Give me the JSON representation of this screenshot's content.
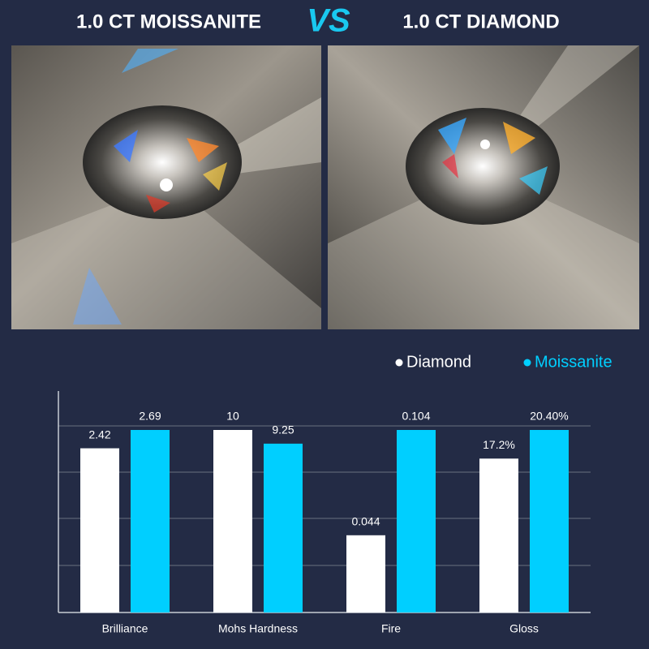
{
  "header": {
    "left": "1.0 CT MOISSANITE",
    "vs": "VS",
    "right": "1.0 CT DIAMOND"
  },
  "chart_data": {
    "type": "bar",
    "categories": [
      "Brilliance",
      "Mohs Hardness",
      "Fire",
      "Gloss"
    ],
    "series": [
      {
        "name": "Diamond",
        "color": "#ffffff",
        "values": [
          2.42,
          10,
          0.044,
          17.2
        ],
        "value_labels": [
          "2.42",
          "10",
          "0.044",
          "17.2%"
        ]
      },
      {
        "name": "Moissanite",
        "color": "#00cfff",
        "values": [
          2.69,
          9.25,
          0.104,
          20.4
        ],
        "value_labels": [
          "2.69",
          "9.25",
          "0.104",
          "20.40%"
        ]
      }
    ]
  }
}
